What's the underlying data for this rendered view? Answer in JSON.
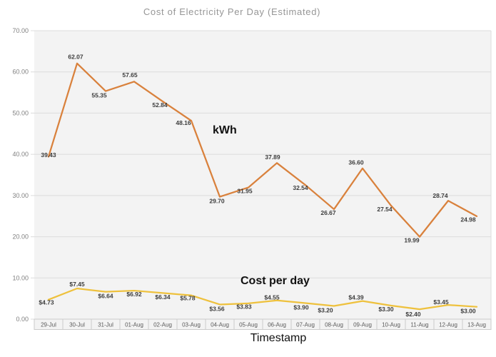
{
  "title": "Cost of Electricity Per Day (Estimated)",
  "xlabel": "Timestamp",
  "series_annotations": {
    "kwh": "kWh",
    "cost": "Cost per day"
  },
  "colors": {
    "kwh_line": "#D9813C",
    "cost_line": "#EEC13D",
    "title_text": "#969696",
    "ytick_text": "#808080",
    "xtick_text": "#595959",
    "data_label_text": "#3C3C3C",
    "gridline": "#DCDCDC",
    "plot_background": "#F3F3F3",
    "cell_border": "#CBCBCB",
    "annotation_text": "#111111"
  },
  "chart_data": {
    "type": "line",
    "title": "Cost of Electricity Per Day (Estimated)",
    "xlabel": "Timestamp",
    "ylabel": "",
    "ylim": [
      0,
      70
    ],
    "ytick_step": 10,
    "ytick_decimals": 2,
    "grid": true,
    "legend_position": "inline-annotations",
    "categories": [
      "29-Jul",
      "30-Jul",
      "31-Jul",
      "01-Aug",
      "02-Aug",
      "03-Aug",
      "04-Aug",
      "05-Aug",
      "06-Aug",
      "07-Aug",
      "08-Aug",
      "09-Aug",
      "10-Aug",
      "11-Aug",
      "12-Aug",
      "13-Aug"
    ],
    "series": [
      {
        "name": "kWh",
        "color_key": "kwh_line",
        "label_prefix": "",
        "values": [
          39.43,
          62.07,
          55.35,
          57.65,
          52.84,
          48.16,
          29.7,
          31.95,
          37.89,
          32.54,
          26.67,
          36.6,
          27.54,
          19.99,
          28.74,
          24.98
        ],
        "label_offsets": [
          [
            0,
            -2
          ],
          [
            -2,
            -9
          ],
          [
            -9,
            6
          ],
          [
            -6,
            -9
          ],
          [
            -4,
            5
          ],
          [
            -11,
            3
          ],
          [
            -4,
            6
          ],
          [
            -5,
            5
          ],
          [
            -6,
            -8
          ],
          [
            -7,
            4
          ],
          [
            -8,
            5
          ],
          [
            -9,
            -8
          ],
          [
            -9,
            5
          ],
          [
            -11,
            5
          ],
          [
            -11,
            -7
          ],
          [
            -12,
            5
          ]
        ]
      },
      {
        "name": "Cost per day",
        "color_key": "cost_line",
        "label_prefix": "$",
        "values": [
          4.73,
          7.45,
          6.64,
          6.92,
          6.34,
          5.78,
          3.56,
          3.83,
          4.55,
          3.9,
          3.2,
          4.39,
          3.3,
          2.4,
          3.45,
          3.0
        ],
        "label_offsets": [
          [
            -3,
            4
          ],
          [
            0,
            -6
          ],
          [
            0,
            6
          ],
          [
            0,
            5
          ],
          [
            0,
            6
          ],
          [
            -5,
            4
          ],
          [
            -4,
            6
          ],
          [
            -6,
            5
          ],
          [
            -7,
            -4
          ],
          [
            -6,
            6
          ],
          [
            -12,
            6
          ],
          [
            -9,
            -5
          ],
          [
            -7,
            5
          ],
          [
            -9,
            7
          ],
          [
            -10,
            -4
          ],
          [
            -12,
            6
          ]
        ]
      }
    ]
  }
}
